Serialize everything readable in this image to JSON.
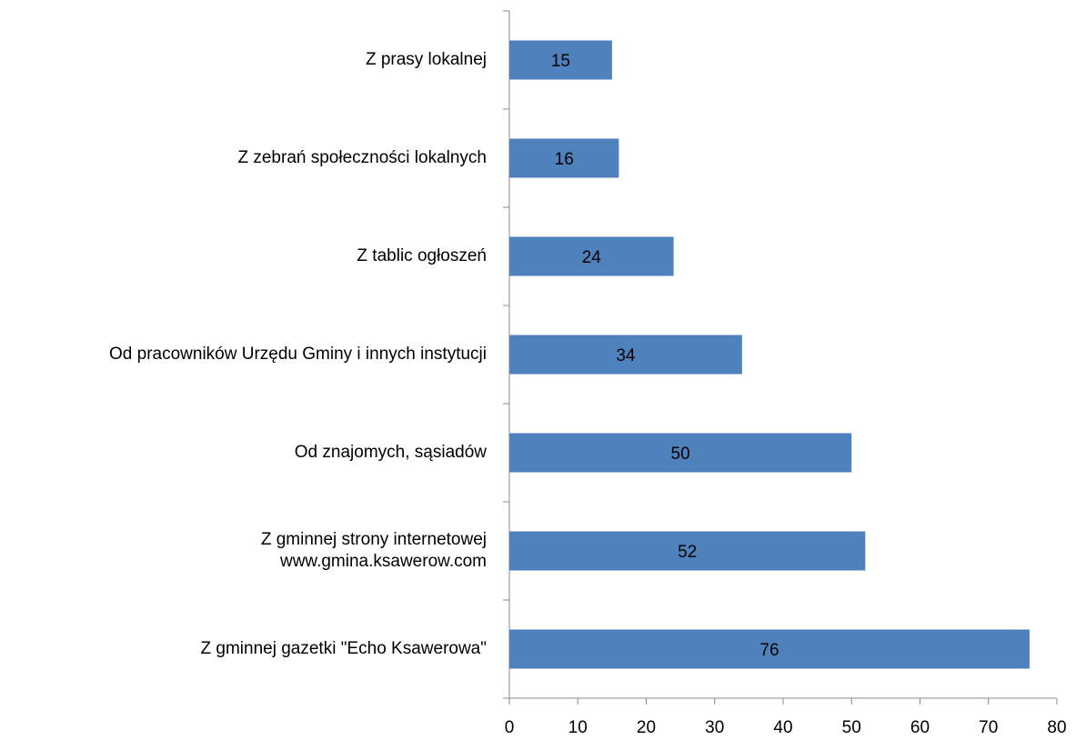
{
  "chart_data": {
    "type": "bar",
    "orientation": "horizontal",
    "categories": [
      "Z prasy lokalnej",
      "Z zebrań społeczności lokalnych",
      "Z tablic ogłoszeń",
      "Od pracowników Urzędu Gminy i innych instytucji",
      "Od znajomych, sąsiadów",
      "Z gminnej strony internetowej\nwww.gmina.ksawerow.com",
      "Z gminnej gazetki \"Echo Ksawerowa\""
    ],
    "values": [
      15,
      16,
      24,
      34,
      50,
      52,
      76
    ],
    "color": "#4f81bd",
    "xlim": [
      0,
      80
    ],
    "xticks": [
      0,
      10,
      20,
      30,
      40,
      50,
      60,
      70,
      80
    ],
    "grid": false
  }
}
